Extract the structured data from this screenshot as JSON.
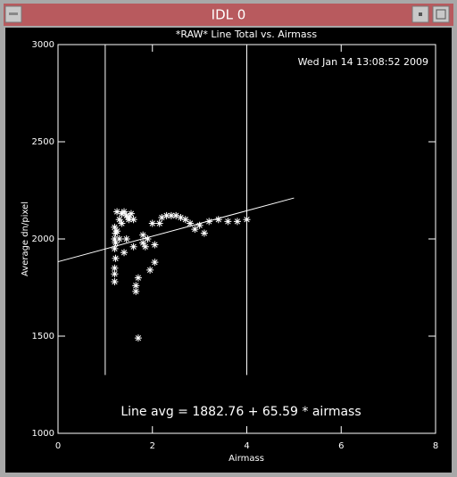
{
  "window_title": "IDL 0",
  "chart_data": {
    "type": "scatter",
    "title": "*RAW* Line Total vs. Airmass",
    "timestamp": "Wed Jan 14 13:08:52 2009",
    "annotation": "Line avg = 1882.76 + 65.59 * airmass",
    "x_label": "Airmass",
    "y_label": "Average dn/pixel",
    "xlim": [
      0,
      8
    ],
    "xticks": [
      0,
      2,
      4,
      6,
      8
    ],
    "ylim": [
      1000,
      3000
    ],
    "yticks": [
      1000,
      1500,
      2000,
      2500,
      3000
    ],
    "color": "#ffffff",
    "fit": {
      "intercept": 1882.76,
      "slope": 65.59,
      "x_range": [
        0,
        5
      ]
    },
    "vlines": [
      1,
      4
    ],
    "vline_ylim": [
      1300,
      3000
    ],
    "x": [
      1.2,
      1.2,
      1.2,
      1.22,
      1.2,
      1.22,
      1.2,
      1.22,
      1.2,
      1.25,
      1.3,
      1.3,
      1.35,
      1.4,
      1.45,
      1.5,
      1.55,
      1.6,
      1.35,
      1.45,
      1.4,
      1.65,
      1.65,
      1.7,
      1.7,
      1.8,
      1.8,
      1.85,
      1.9,
      2.0,
      1.95,
      2.05,
      2.05,
      2.15,
      2.2,
      2.3,
      2.4,
      2.5,
      2.6,
      2.7,
      2.8,
      2.9,
      3.0,
      3.1,
      3.2,
      3.4,
      3.6,
      3.8,
      4.0,
      1.5,
      1.25,
      1.6
    ],
    "values": [
      1780,
      1820,
      1850,
      1900,
      1950,
      1980,
      2000,
      2030,
      2060,
      2040,
      2000,
      2100,
      2130,
      2140,
      2120,
      2110,
      2130,
      2100,
      2080,
      2000,
      1930,
      1730,
      1760,
      1800,
      1490,
      1980,
      2020,
      1960,
      2000,
      2080,
      1840,
      1880,
      1970,
      2080,
      2110,
      2120,
      2120,
      2120,
      2110,
      2100,
      2080,
      2050,
      2070,
      2030,
      2090,
      2100,
      2090,
      2090,
      2100,
      2100,
      2140,
      1960
    ]
  }
}
